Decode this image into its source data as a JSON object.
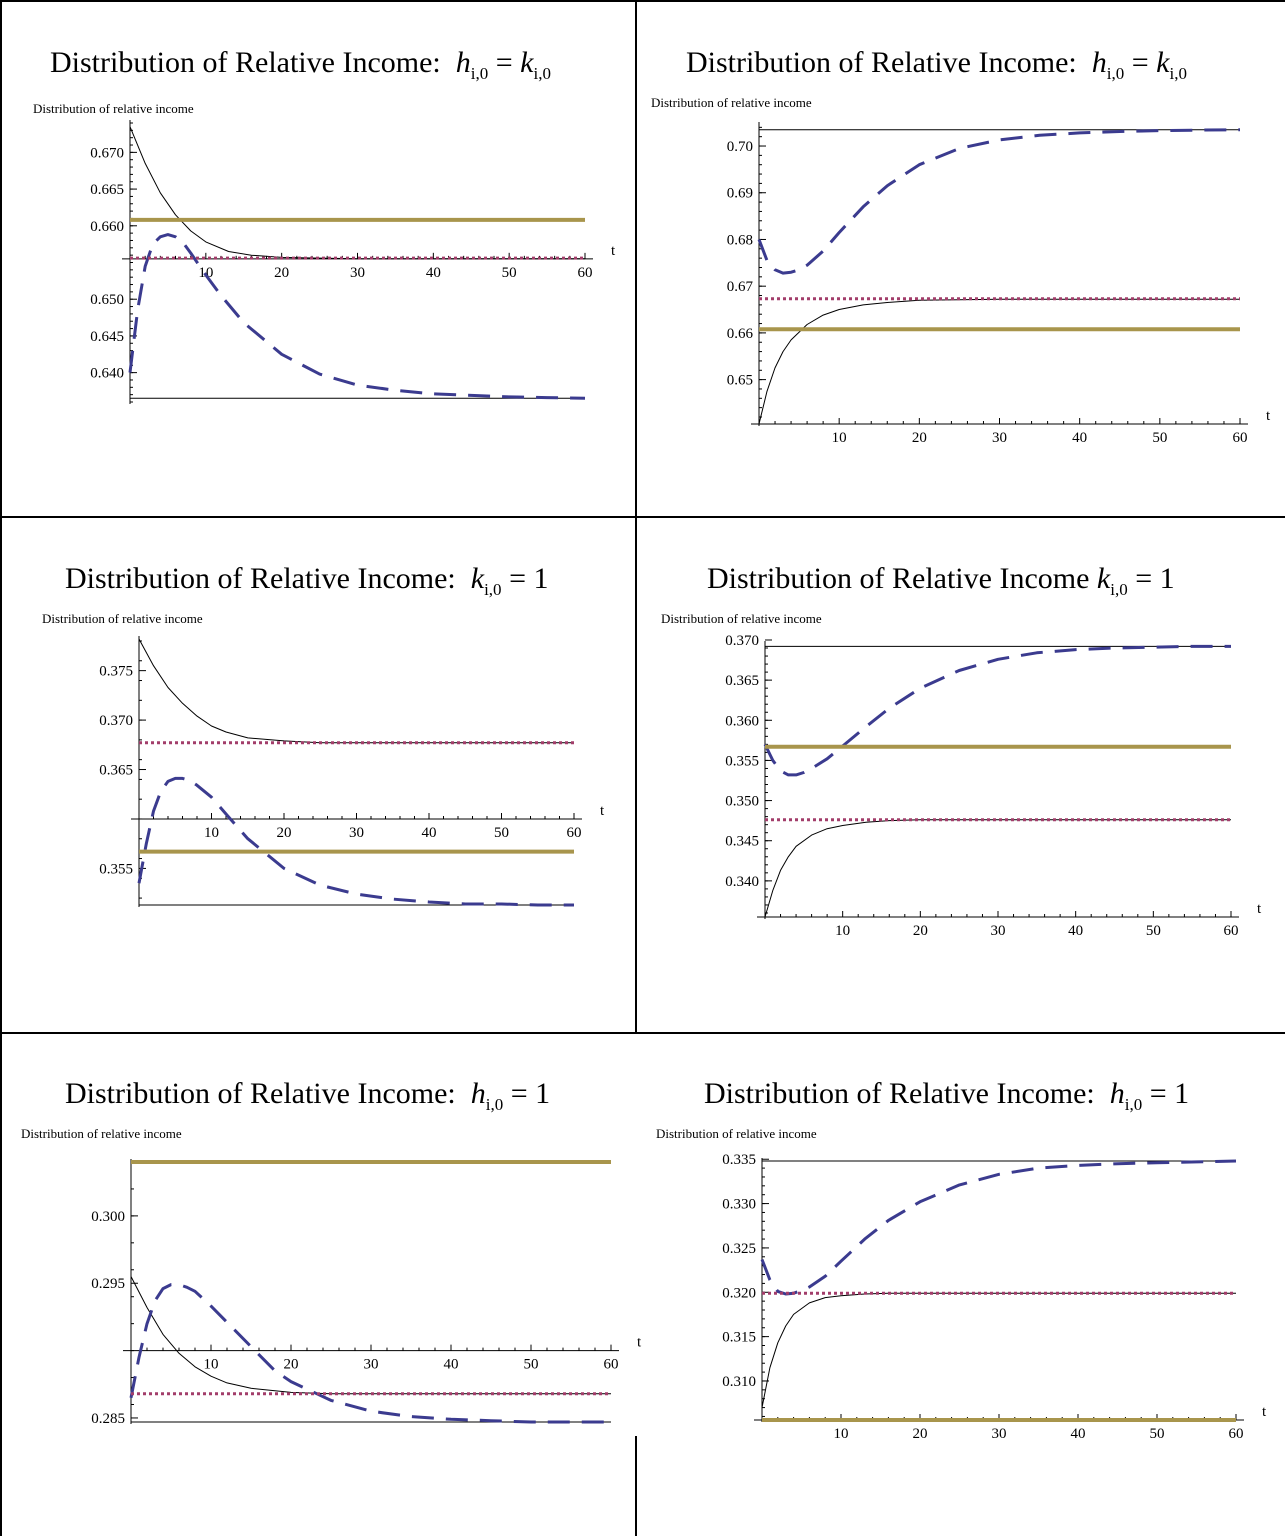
{
  "colors": {
    "solid": "#000000",
    "dashed": "#3b3b8f",
    "dotted": "#a23d6a",
    "thick": "#a8954c"
  },
  "chart_data": [
    {
      "type": "line",
      "title": {
        "prefix": "Distribution of Relative Income:",
        "var": "h",
        "sub": "i,0",
        "eq": " = ",
        "rhs_var": "k",
        "rhs_sub": "i,0",
        "rhs_plain": ""
      },
      "ylabel": "Distribution of relative income",
      "xlabel": "t",
      "xlim": [
        0,
        60
      ],
      "ylim": [
        0.636,
        0.674
      ],
      "xaxis_y": 0.6555,
      "xticks": [
        10,
        20,
        30,
        40,
        50,
        60
      ],
      "yticks": [
        0.64,
        0.645,
        0.65,
        0.66,
        0.665,
        0.67
      ],
      "ytick_labels": [
        "0.640",
        "0.645",
        "0.650",
        "0.660",
        "0.665",
        "0.670"
      ],
      "series": [
        {
          "style": "solid",
          "x": [
            0,
            2,
            4,
            6,
            8,
            10,
            13,
            16,
            20,
            25,
            30,
            40,
            50,
            60
          ],
          "y": [
            0.6735,
            0.6685,
            0.6645,
            0.6615,
            0.6593,
            0.6578,
            0.6565,
            0.656,
            0.6557,
            0.6556,
            0.6555,
            0.6555,
            0.6555,
            0.6555
          ]
        },
        {
          "style": "solid",
          "x": [
            0,
            60
          ],
          "y": [
            0.6365,
            0.6365
          ]
        },
        {
          "style": "dashed",
          "x": [
            0,
            1,
            2,
            3,
            4,
            5,
            6,
            7,
            8,
            10,
            12,
            15,
            20,
            25,
            30,
            35,
            40,
            45,
            50,
            55,
            60
          ],
          "y": [
            0.64,
            0.6485,
            0.6545,
            0.6575,
            0.6585,
            0.6588,
            0.6585,
            0.6577,
            0.6563,
            0.6533,
            0.6505,
            0.6468,
            0.6425,
            0.6398,
            0.6383,
            0.6376,
            0.6371,
            0.6369,
            0.6367,
            0.6366,
            0.6365
          ]
        },
        {
          "style": "dotted",
          "x": [
            0,
            60
          ],
          "y": [
            0.6556,
            0.6556
          ]
        },
        {
          "style": "thick",
          "x": [
            0,
            60
          ],
          "y": [
            0.6608,
            0.6608
          ]
        }
      ]
    },
    {
      "type": "line",
      "title": {
        "prefix": "Distribution of Relative Income:",
        "var": "h",
        "sub": "i,0",
        "eq": " = ",
        "rhs_var": "k",
        "rhs_sub": "i,0",
        "rhs_plain": ""
      },
      "ylabel": "Distribution of relative income",
      "xlabel": "t",
      "xlim": [
        0,
        60
      ],
      "ylim": [
        0.6405,
        0.7045
      ],
      "xaxis_y": 0.6405,
      "xticks": [
        10,
        20,
        30,
        40,
        50,
        60
      ],
      "yticks": [
        0.65,
        0.66,
        0.67,
        0.68,
        0.69,
        0.7
      ],
      "ytick_labels": [
        "0.65",
        "0.66",
        "0.67",
        "0.68",
        "0.69",
        "0.70"
      ],
      "series": [
        {
          "style": "solid",
          "x": [
            0,
            60
          ],
          "y": [
            0.7035,
            0.7035
          ]
        },
        {
          "style": "solid",
          "x": [
            0,
            1,
            2,
            3,
            4,
            6,
            8,
            10,
            13,
            16,
            20,
            30,
            40,
            60
          ],
          "y": [
            0.6405,
            0.6475,
            0.6525,
            0.656,
            0.6585,
            0.6618,
            0.6638,
            0.665,
            0.666,
            0.6665,
            0.667,
            0.6672,
            0.6672,
            0.6672
          ]
        },
        {
          "style": "dashed",
          "x": [
            0,
            1,
            2,
            3,
            4,
            5,
            6,
            8,
            10,
            13,
            16,
            20,
            25,
            30,
            35,
            40,
            45,
            50,
            55,
            60
          ],
          "y": [
            0.68,
            0.6755,
            0.6735,
            0.6728,
            0.673,
            0.6735,
            0.6745,
            0.6775,
            0.6815,
            0.687,
            0.6915,
            0.696,
            0.6995,
            0.7013,
            0.7023,
            0.7028,
            0.7031,
            0.7033,
            0.7034,
            0.7035
          ]
        },
        {
          "style": "dotted",
          "x": [
            0,
            60
          ],
          "y": [
            0.6673,
            0.6673
          ]
        },
        {
          "style": "thick",
          "x": [
            0,
            60
          ],
          "y": [
            0.6608,
            0.6608
          ]
        }
      ]
    },
    {
      "type": "line",
      "title": {
        "prefix": "Distribution of Relative Income:",
        "var": "k",
        "sub": "i,0",
        "eq": " = ",
        "rhs_var": "",
        "rhs_sub": "",
        "rhs_plain": "1"
      },
      "ylabel": "Distribution of relative income",
      "xlabel": "t",
      "xlim": [
        0,
        60
      ],
      "ylim": [
        0.3513,
        0.3782
      ],
      "xaxis_y": 0.36,
      "xticks": [
        10,
        20,
        30,
        40,
        50,
        60
      ],
      "yticks": [
        0.355,
        0.365,
        0.37,
        0.375
      ],
      "ytick_labels": [
        "0.355",
        "0.365",
        "0.370",
        "0.375"
      ],
      "series": [
        {
          "style": "solid",
          "x": [
            0,
            2,
            4,
            6,
            8,
            10,
            12,
            15,
            20,
            25,
            30,
            40,
            50,
            60
          ],
          "y": [
            0.3782,
            0.3755,
            0.3733,
            0.3717,
            0.3704,
            0.3694,
            0.3688,
            0.3682,
            0.3679,
            0.3677,
            0.3677,
            0.3677,
            0.3677,
            0.3677
          ]
        },
        {
          "style": "solid",
          "x": [
            0,
            60
          ],
          "y": [
            0.3513,
            0.3513
          ]
        },
        {
          "style": "dashed",
          "x": [
            0,
            1,
            2,
            3,
            4,
            5,
            6,
            7,
            8,
            10,
            12,
            15,
            20,
            25,
            30,
            35,
            40,
            45,
            50,
            55,
            60
          ],
          "y": [
            0.3535,
            0.3575,
            0.3608,
            0.3628,
            0.3638,
            0.3641,
            0.3641,
            0.3639,
            0.3634,
            0.3622,
            0.3605,
            0.358,
            0.355,
            0.3533,
            0.3524,
            0.3519,
            0.3516,
            0.3514,
            0.3514,
            0.3513,
            0.3513
          ]
        },
        {
          "style": "dotted",
          "x": [
            0,
            60
          ],
          "y": [
            0.3677,
            0.3677
          ]
        },
        {
          "style": "thick",
          "x": [
            0,
            60
          ],
          "y": [
            0.3567,
            0.3567
          ]
        }
      ]
    },
    {
      "type": "line",
      "title": {
        "prefix": "Distribution of Relative Income",
        "var": "k",
        "sub": "i,0",
        "eq": " = ",
        "rhs_var": "",
        "rhs_sub": "",
        "rhs_plain": "1"
      },
      "ylabel": "Distribution of relative income",
      "xlabel": "t",
      "xlim": [
        0,
        60
      ],
      "ylim": [
        0.3355,
        0.3695
      ],
      "xaxis_y": 0.3355,
      "xticks": [
        10,
        20,
        30,
        40,
        50,
        60
      ],
      "yticks": [
        0.34,
        0.345,
        0.35,
        0.355,
        0.36,
        0.365,
        0.37
      ],
      "ytick_labels": [
        "0.340",
        "0.345",
        "0.350",
        "0.355",
        "0.360",
        "0.365",
        "0.370"
      ],
      "series": [
        {
          "style": "solid",
          "x": [
            0,
            60
          ],
          "y": [
            0.3692,
            0.3692
          ]
        },
        {
          "style": "solid",
          "x": [
            0,
            1,
            2,
            3,
            4,
            6,
            8,
            10,
            13,
            16,
            20,
            30,
            40,
            60
          ],
          "y": [
            0.3355,
            0.3388,
            0.3413,
            0.343,
            0.3443,
            0.3457,
            0.3465,
            0.3469,
            0.3473,
            0.3475,
            0.3476,
            0.3476,
            0.3476,
            0.3476
          ]
        },
        {
          "style": "dashed",
          "x": [
            0,
            1,
            2,
            3,
            4,
            5,
            6,
            8,
            10,
            13,
            16,
            20,
            25,
            30,
            35,
            40,
            45,
            50,
            55,
            60
          ],
          "y": [
            0.357,
            0.355,
            0.3537,
            0.3532,
            0.3532,
            0.3535,
            0.354,
            0.3552,
            0.3568,
            0.3592,
            0.3615,
            0.364,
            0.3662,
            0.3676,
            0.3684,
            0.3688,
            0.369,
            0.3691,
            0.3692,
            0.3692
          ]
        },
        {
          "style": "dotted",
          "x": [
            0,
            60
          ],
          "y": [
            0.3476,
            0.3476
          ]
        },
        {
          "style": "thick",
          "x": [
            0,
            60
          ],
          "y": [
            0.3567,
            0.3567
          ]
        }
      ]
    },
    {
      "type": "line",
      "title": {
        "prefix": "Distribution of Relative Income:",
        "var": "h",
        "sub": "i,0",
        "eq": " = ",
        "rhs_var": "",
        "rhs_sub": "",
        "rhs_plain": "1"
      },
      "ylabel": "Distribution of relative income",
      "xlabel": "t",
      "xlim": [
        0,
        60
      ],
      "ylim": [
        0.2847,
        0.304
      ],
      "xaxis_y": 0.29,
      "xticks": [
        10,
        20,
        30,
        40,
        50,
        60
      ],
      "yticks": [
        0.285,
        0.295,
        0.3
      ],
      "ytick_labels": [
        "0.285",
        "0.295",
        "0.300"
      ],
      "series": [
        {
          "style": "solid",
          "x": [
            0,
            2,
            4,
            6,
            8,
            10,
            12,
            15,
            20,
            25,
            30,
            40,
            50,
            60
          ],
          "y": [
            0.2955,
            0.2932,
            0.2912,
            0.2898,
            0.2888,
            0.2881,
            0.2876,
            0.2872,
            0.2869,
            0.2868,
            0.2868,
            0.2868,
            0.2868,
            0.2868
          ]
        },
        {
          "style": "solid",
          "x": [
            0,
            60
          ],
          "y": [
            0.2847,
            0.2847
          ]
        },
        {
          "style": "dashed",
          "x": [
            0,
            1,
            2,
            3,
            4,
            5,
            6,
            7,
            8,
            10,
            12,
            15,
            18,
            20,
            25,
            30,
            35,
            40,
            45,
            50,
            55,
            60
          ],
          "y": [
            0.2865,
            0.2895,
            0.292,
            0.2937,
            0.2946,
            0.2949,
            0.2949,
            0.2947,
            0.2944,
            0.2933,
            0.2921,
            0.2903,
            0.2885,
            0.2877,
            0.2863,
            0.2855,
            0.2851,
            0.2849,
            0.2848,
            0.2847,
            0.2847,
            0.2847
          ]
        },
        {
          "style": "dotted",
          "x": [
            0,
            60
          ],
          "y": [
            0.2868,
            0.2868
          ]
        },
        {
          "style": "thick",
          "x": [
            0,
            60
          ],
          "y": [
            0.304,
            0.304
          ]
        }
      ]
    },
    {
      "type": "line",
      "title": {
        "prefix": "Distribution of Relative Income:",
        "var": "h",
        "sub": "i,0",
        "eq": " = ",
        "rhs_var": "",
        "rhs_sub": "",
        "rhs_plain": "1"
      },
      "ylabel": "Distribution of relative income",
      "xlabel": "t",
      "xlim": [
        0,
        60
      ],
      "ylim": [
        0.3056,
        0.3348
      ],
      "xaxis_y": 0.3056,
      "xticks": [
        10,
        20,
        30,
        40,
        50,
        60
      ],
      "yticks": [
        0.31,
        0.315,
        0.32,
        0.325,
        0.33,
        0.335
      ],
      "ytick_labels": [
        "0.310",
        "0.315",
        "0.320",
        "0.325",
        "0.330",
        "0.335"
      ],
      "series": [
        {
          "style": "solid",
          "x": [
            0,
            60
          ],
          "y": [
            0.3348,
            0.3348
          ]
        },
        {
          "style": "solid",
          "x": [
            0,
            1,
            2,
            3,
            4,
            6,
            8,
            10,
            13,
            16,
            20,
            30,
            40,
            60
          ],
          "y": [
            0.307,
            0.3115,
            0.3143,
            0.3162,
            0.3175,
            0.3188,
            0.3194,
            0.3196,
            0.3198,
            0.3199,
            0.3199,
            0.3199,
            0.3199,
            0.3199
          ]
        },
        {
          "style": "dashed",
          "x": [
            0,
            1,
            2,
            3,
            4,
            5,
            6,
            8,
            10,
            13,
            16,
            20,
            25,
            30,
            35,
            40,
            45,
            50,
            55,
            60
          ],
          "y": [
            0.3237,
            0.3214,
            0.3201,
            0.3198,
            0.3199,
            0.3202,
            0.3206,
            0.3218,
            0.3235,
            0.326,
            0.3281,
            0.3302,
            0.3321,
            0.3333,
            0.334,
            0.3343,
            0.3345,
            0.3346,
            0.3347,
            0.3348
          ]
        },
        {
          "style": "dotted",
          "x": [
            0,
            60
          ],
          "y": [
            0.3199,
            0.3199
          ]
        },
        {
          "style": "thick",
          "x": [
            0,
            60
          ],
          "y": [
            0.3056,
            0.3056
          ]
        }
      ]
    }
  ]
}
